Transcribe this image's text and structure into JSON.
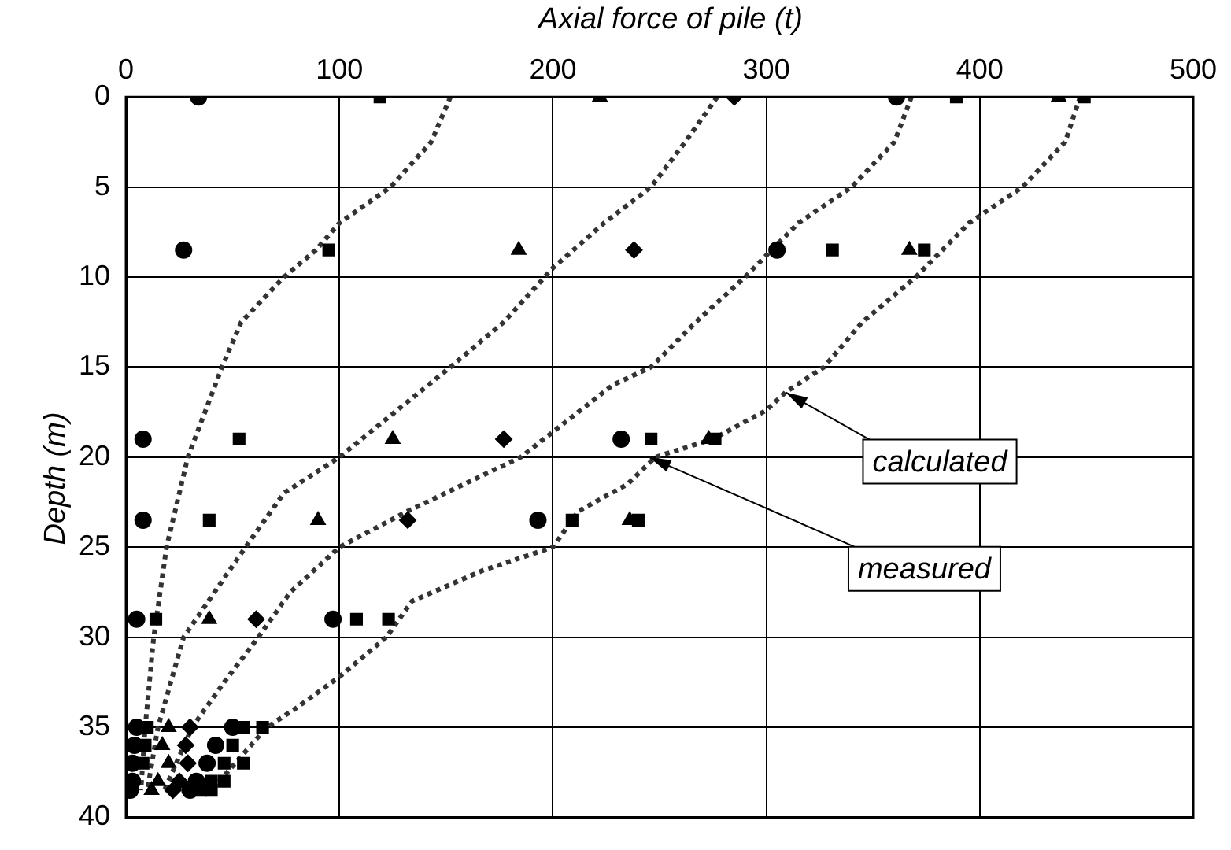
{
  "chart_data": {
    "type": "scatter",
    "xlabel": "Axial force of pile (t)",
    "ylabel": "Depth (m)",
    "xlim": [
      0,
      500
    ],
    "xticks": [
      0,
      100,
      200,
      300,
      400,
      500
    ],
    "ylim": [
      40,
      0
    ],
    "yticks": [
      0,
      5,
      10,
      15,
      20,
      25,
      30,
      35,
      40
    ],
    "grid": true,
    "legend": false,
    "series": [
      {
        "type": "scatter",
        "marker": "circle",
        "color": "#000000",
        "x": [
          34,
          27,
          8,
          8,
          5,
          5,
          4,
          3,
          3,
          2
        ],
        "values": [
          0,
          8.5,
          19,
          23.5,
          29,
          35,
          36,
          37,
          38,
          38.5
        ]
      },
      {
        "type": "scatter",
        "marker": "square",
        "color": "#000000",
        "x": [
          119,
          95,
          53,
          39,
          14,
          10,
          9,
          8,
          null,
          null
        ],
        "values": [
          0,
          8.5,
          19,
          23.5,
          29,
          35,
          36,
          37,
          null,
          null
        ]
      },
      {
        "type": "scatter",
        "marker": "triangle",
        "color": "#000000",
        "x": [
          222,
          184,
          125,
          90,
          39,
          20,
          17,
          20,
          15,
          12
        ],
        "values": [
          0,
          8.5,
          19,
          23.5,
          29,
          35,
          36,
          37,
          38,
          38.5
        ]
      },
      {
        "type": "scatter",
        "marker": "diamond",
        "color": "#000000",
        "x": [
          285,
          238,
          177,
          132,
          61,
          30,
          28,
          29,
          25,
          22
        ],
        "values": [
          0,
          8.5,
          19,
          23.5,
          29,
          35,
          36,
          37,
          38,
          38.5
        ]
      },
      {
        "type": "scatter",
        "marker": "circle",
        "color": "#000000",
        "x": [
          361,
          305,
          232,
          193,
          97,
          50,
          42,
          38,
          33,
          30
        ],
        "values": [
          0,
          8.5,
          19,
          23.5,
          29,
          35,
          36,
          37,
          38,
          38.5
        ]
      },
      {
        "type": "scatter",
        "marker": "square",
        "color": "#000000",
        "x": [
          389,
          331,
          246,
          209,
          108,
          55,
          null,
          46,
          40,
          35
        ],
        "values": [
          0,
          8.5,
          19,
          23.5,
          29,
          35,
          null,
          37,
          38,
          38.5
        ]
      },
      {
        "type": "scatter",
        "marker": "triangle",
        "color": "#000000",
        "x": [
          437,
          367,
          273,
          236
        ],
        "values": [
          0,
          8.5,
          19,
          23.5
        ]
      },
      {
        "type": "scatter",
        "marker": "square",
        "color": "#000000",
        "x": [
          449,
          374,
          276,
          240,
          123,
          64,
          50,
          55,
          46,
          40
        ],
        "values": [
          0,
          8.5,
          19,
          23.5,
          29,
          35,
          36,
          37,
          38,
          38.5
        ]
      },
      {
        "type": "line",
        "marker": "none",
        "line_style": "dotted",
        "color": "#333333",
        "x": [
          152,
          143,
          124,
          100,
          89,
          74,
          54,
          45,
          29,
          19,
          13,
          9,
          7
        ],
        "values": [
          0,
          2.5,
          5,
          7,
          8.5,
          10,
          12.5,
          15,
          20,
          25,
          30,
          35,
          38.5
        ]
      },
      {
        "type": "line",
        "marker": "none",
        "line_style": "dotted",
        "color": "#333333",
        "x": [
          277,
          262,
          246,
          224,
          200,
          177,
          152,
          100,
          74,
          56,
          27,
          15,
          10
        ],
        "values": [
          0,
          2.5,
          5,
          7,
          9.5,
          12.5,
          15,
          20,
          22,
          25,
          30,
          35,
          38.5
        ]
      },
      {
        "type": "line",
        "marker": "none",
        "line_style": "dotted",
        "color": "#333333",
        "x": [
          368,
          360,
          340,
          315,
          290,
          267,
          246,
          228,
          185,
          132,
          100,
          77,
          62,
          46,
          31,
          18
        ],
        "values": [
          0,
          2.5,
          5,
          7,
          10,
          12.5,
          15,
          16,
          20,
          23,
          25,
          27.5,
          30,
          32.5,
          35,
          38.5
        ]
      },
      {
        "type": "line",
        "marker": "none",
        "line_style": "dotted",
        "color": "#333333",
        "x": [
          447,
          440,
          420,
          395,
          370,
          345,
          327,
          309,
          300,
          275,
          248,
          235,
          212,
          200,
          167,
          134,
          122,
          100,
          79,
          66,
          40
        ],
        "values": [
          0,
          2.5,
          5,
          7,
          10,
          12.5,
          15,
          16.4,
          17.4,
          19,
          20,
          21.5,
          23,
          25,
          26.3,
          28,
          30,
          32.2,
          34,
          35,
          38.5
        ]
      }
    ],
    "annotations": [
      {
        "text": "calculated",
        "x": 309,
        "y": 16.4
      },
      {
        "text": "measured",
        "x": 245,
        "y": 20
      }
    ]
  }
}
